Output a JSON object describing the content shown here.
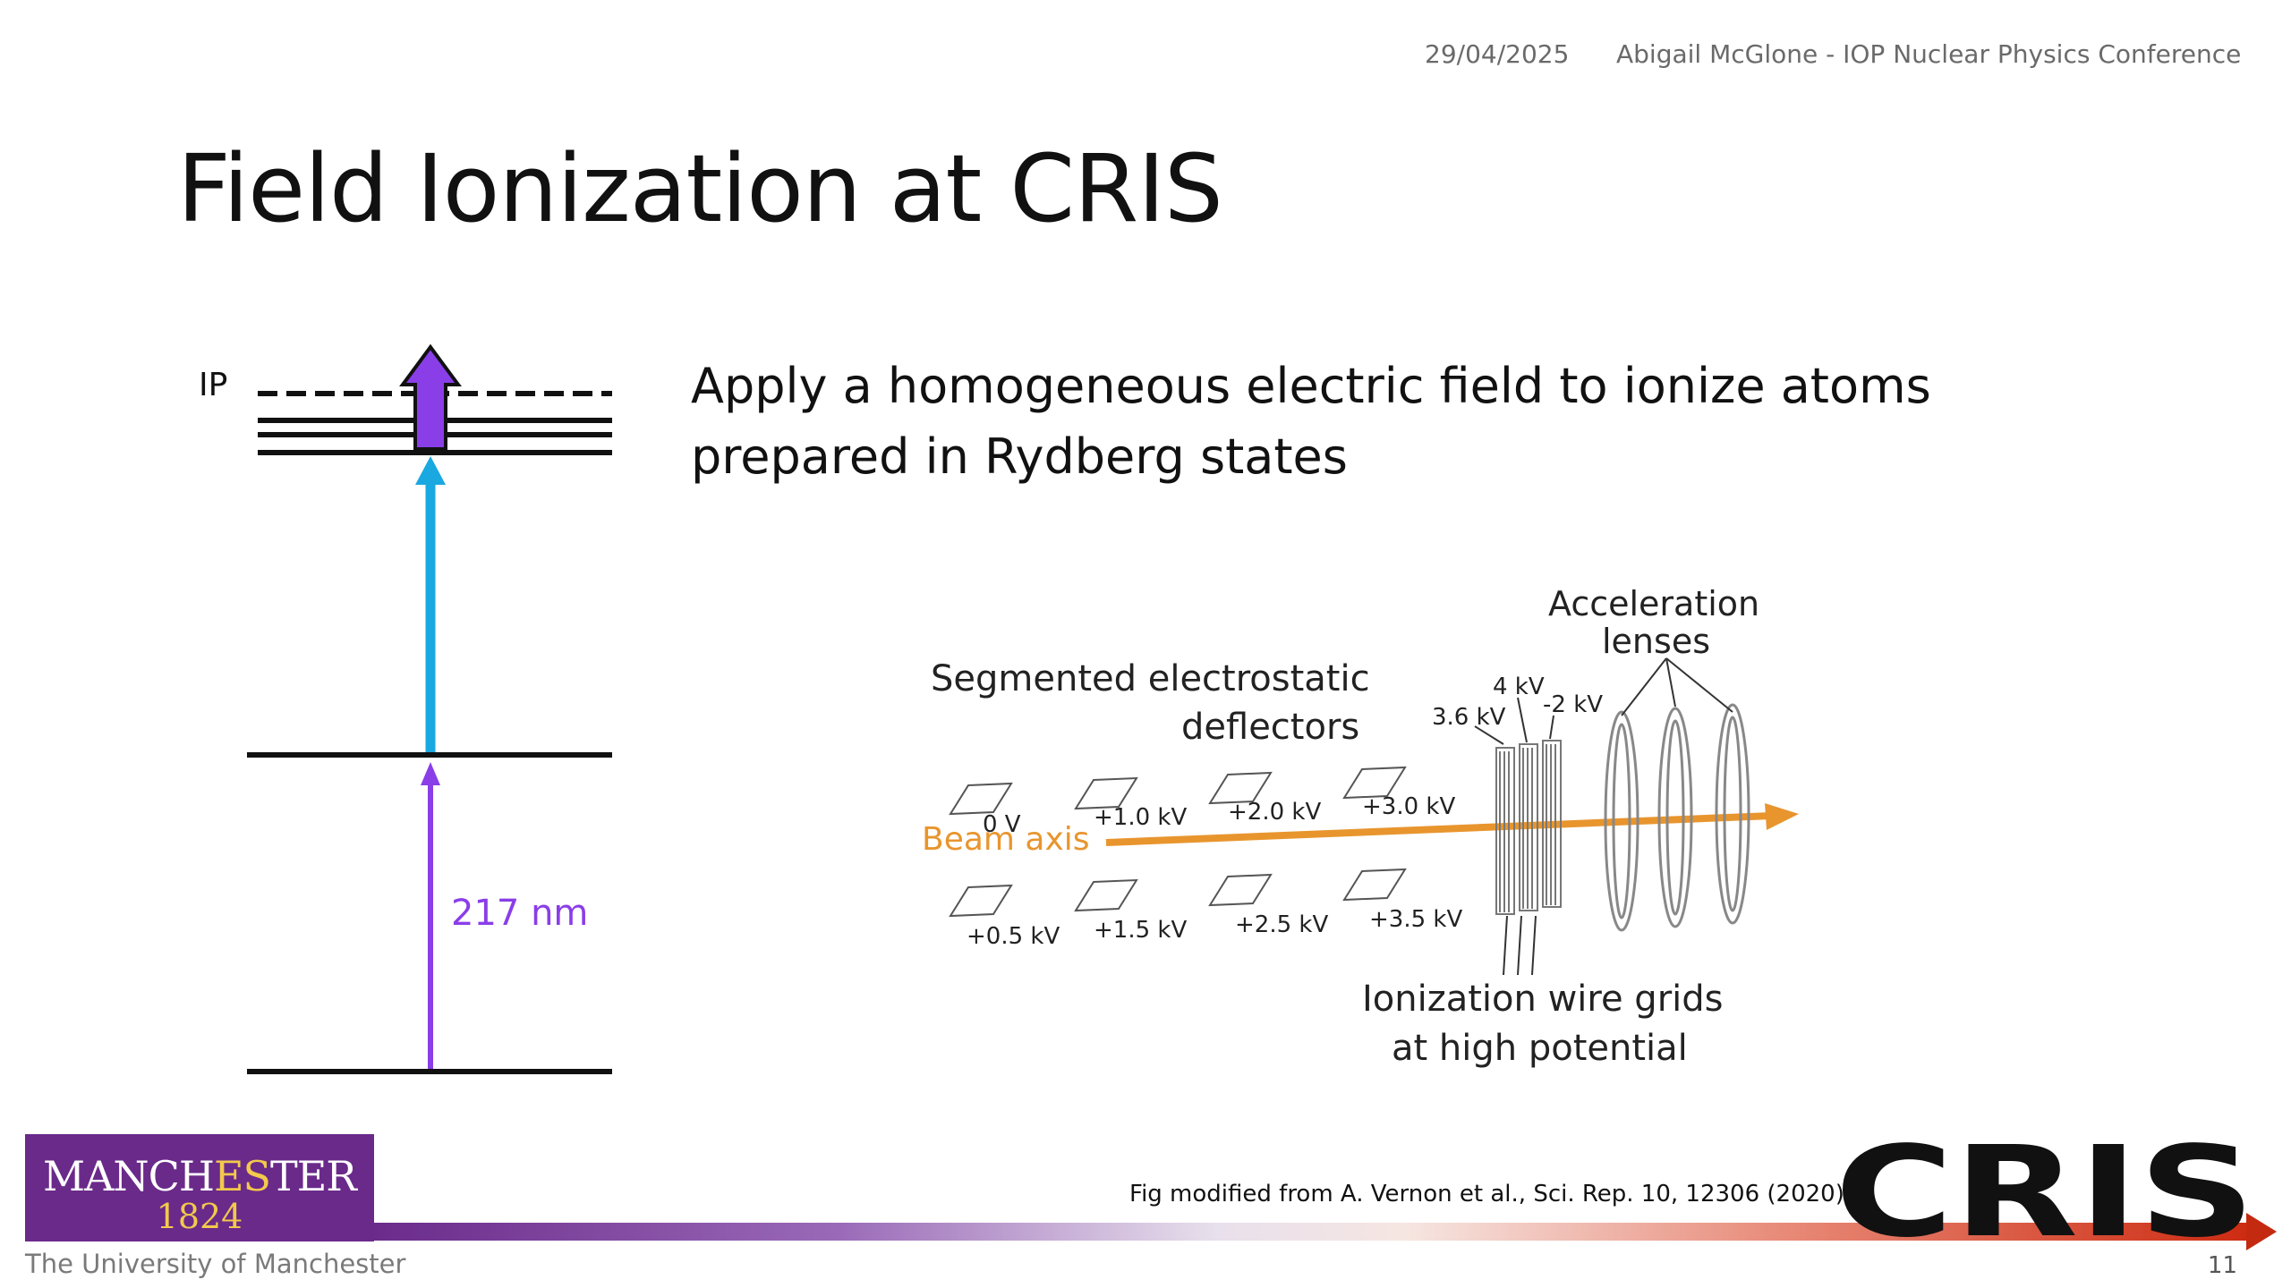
{
  "header": {
    "date": "29/04/2025",
    "author_event": "Abigail McGlone - IOP Nuclear Physics Conference"
  },
  "slide": {
    "title": "Field Ionization at CRIS",
    "body_line1": "Apply a homogeneous electric field to ionize atoms",
    "body_line2": "prepared in Rydberg states",
    "page_number": "11"
  },
  "level_diagram": {
    "ip_label": "IP",
    "wavelength_label": "217 nm",
    "colors": {
      "purple": "#8a3ee8",
      "blue": "#1aa8e0",
      "black": "#111111"
    }
  },
  "cris_diagram": {
    "deflector_label_1": "Segmented electrostatic",
    "deflector_label_2": "deflectors",
    "lenses_label_1": "Acceleration",
    "lenses_label_2": "lenses",
    "grid_label_1": "Ionization wire grids",
    "grid_label_2": "at high potential",
    "beam_axis_label": "Beam axis",
    "top_voltages": [
      "0 V",
      "+1.0 kV",
      "+2.0 kV",
      "+3.0 kV"
    ],
    "bottom_voltages": [
      "+0.5 kV",
      "+1.5 kV",
      "+2.5 kV",
      "+3.5 kV"
    ],
    "grid_voltages": [
      "3.6 kV",
      "4 kV",
      "-2 kV"
    ],
    "colors": {
      "beam": "#e8952e"
    }
  },
  "footer": {
    "credit": "Fig modified from A. Vernon et al., Sci. Rep. 10, 12306 (2020).",
    "university_logo_word_1": "MANCH",
    "university_logo_word_es": "ES",
    "university_logo_word_2": "TER",
    "university_logo_year": "1824",
    "university_name": "The University of Manchester",
    "cris_logo_text": "CRIS"
  }
}
